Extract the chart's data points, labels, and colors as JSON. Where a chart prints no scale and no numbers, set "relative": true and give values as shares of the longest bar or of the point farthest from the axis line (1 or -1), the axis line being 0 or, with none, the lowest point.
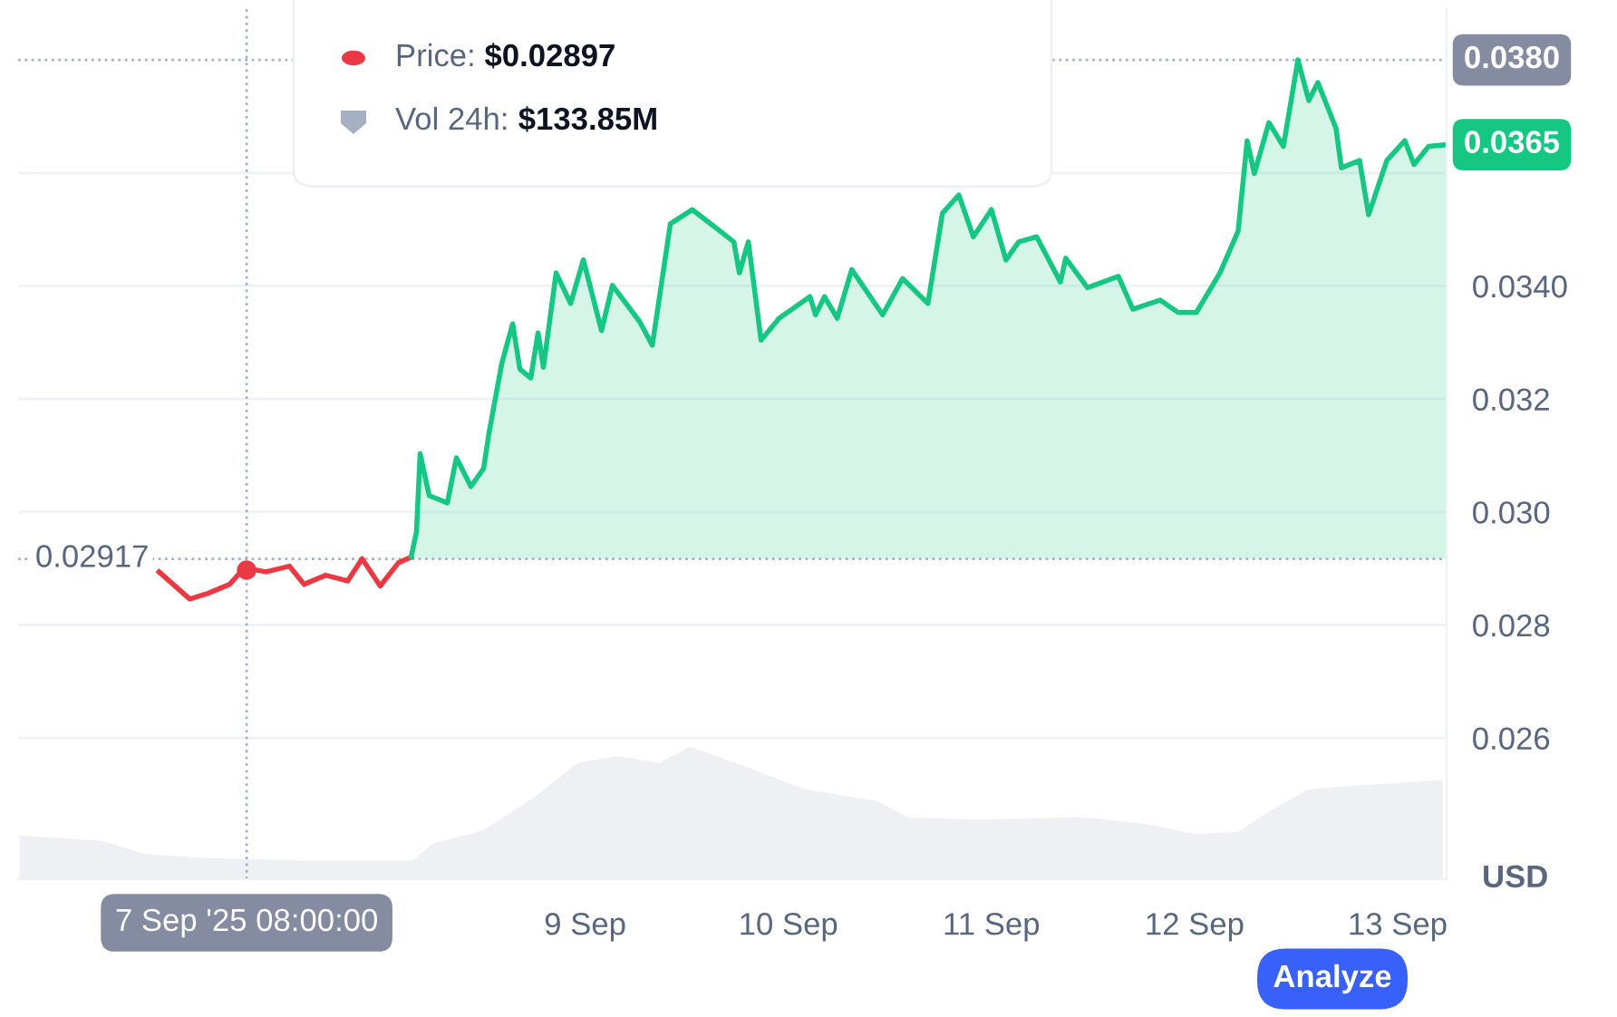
{
  "chart_data": [
    {
      "type": "area",
      "relative": true,
      "xlim": [
        "2025-09-06T05:00",
        "2025-09-13T05:47"
      ],
      "x": [
        "2025-09-06T05:09",
        "2025-09-06T15:00",
        "2025-09-06T19:56",
        "2025-09-07T03:13",
        "2025-09-07T15:26",
        "2025-09-08T03:39",
        "2025-09-08T06:00",
        "2025-09-08T12:00",
        "2025-09-08T18:13",
        "2025-09-08T23:09",
        "2025-09-09T03:51",
        "2025-09-09T08:47",
        "2025-09-09T12:26",
        "2025-09-09T18:39",
        "2025-09-10T01:56",
        "2025-09-10T10:30",
        "2025-09-10T14:09",
        "2025-09-10T22:30",
        "2025-09-11T10:43",
        "2025-09-11T18:00",
        "2025-09-12T00:13",
        "2025-09-12T05:09",
        "2025-09-12T08:47",
        "2025-09-12T13:30",
        "2025-09-12T17:21",
        "2025-09-13T05:21"
      ],
      "series": [
        {
          "color": "#eef0f3",
          "values": [
            0.33,
            0.29,
            0.19,
            0.16,
            0.14,
            0.14,
            0.27,
            0.37,
            0.63,
            0.88,
            0.93,
            0.88,
            1.0,
            0.86,
            0.68,
            0.59,
            0.47,
            0.45,
            0.47,
            0.42,
            0.34,
            0.36,
            0.51,
            0.68,
            0.7,
            0.75
          ]
        }
      ]
    },
    {
      "type": "area",
      "ylabel": "USD",
      "grid": "y",
      "legend": false,
      "xlim": [
        "2025-09-06T05:00",
        "2025-09-13T05:47"
      ],
      "ylim": [
        0.0235,
        0.0389
      ],
      "xticks": [
        {
          "value": "2025-09-09",
          "label": "9 Sep"
        },
        {
          "value": "2025-09-10",
          "label": "10 Sep"
        },
        {
          "value": "2025-09-11",
          "label": "11 Sep"
        },
        {
          "value": "2025-09-12",
          "label": "12 Sep"
        },
        {
          "value": "2025-09-13",
          "label": "13 Sep"
        }
      ],
      "yticks": [
        {
          "value": 0.026,
          "label": "0.026"
        },
        {
          "value": 0.028,
          "label": "0.028"
        },
        {
          "value": 0.03,
          "label": "0.030"
        },
        {
          "value": 0.032,
          "label": "0.032"
        },
        {
          "value": 0.034,
          "label": "0.0340"
        },
        {
          "value": 0.036,
          "label": null
        }
      ],
      "series": [
        {
          "type": "line",
          "color": "#ea3943",
          "x": [
            "2025-09-06T21:39",
            "2025-09-07T01:17",
            "2025-09-07T03:26",
            "2025-09-07T06:00",
            "2025-09-07T07:43",
            "2025-09-07T10:17",
            "2025-09-07T13:04",
            "2025-09-07T14:47",
            "2025-09-07T17:21",
            "2025-09-07T19:56",
            "2025-09-07T21:39",
            "2025-09-07T23:47",
            "2025-09-08T01:56",
            "2025-09-08T03:26"
          ],
          "values": [
            0.02894,
            0.02846,
            0.02856,
            0.02872,
            0.02901,
            0.02894,
            0.02904,
            0.02872,
            0.02888,
            0.02878,
            0.02917,
            0.02869,
            0.0291,
            0.0292
          ]
        },
        {
          "color": "#16c784",
          "x": [
            "2025-09-08T03:26",
            "2025-09-08T04:04",
            "2025-09-08T04:30",
            "2025-09-08T05:34",
            "2025-09-08T07:43",
            "2025-09-08T08:47",
            "2025-09-08T10:30",
            "2025-09-08T12:00",
            "2025-09-08T12:39",
            "2025-09-08T14:09",
            "2025-09-08T15:26",
            "2025-09-08T16:17",
            "2025-09-08T17:34",
            "2025-09-08T18:26",
            "2025-09-08T19:04",
            "2025-09-08T20:34",
            "2025-09-08T22:17",
            "2025-09-08T23:47",
            "2025-09-09T01:56",
            "2025-09-09T03:13",
            "2025-09-09T06:26",
            "2025-09-09T07:56",
            "2025-09-09T10:04",
            "2025-09-09T12:39",
            "2025-09-09T15:26",
            "2025-09-09T17:34",
            "2025-09-09T18:13",
            "2025-09-09T19:17",
            "2025-09-09T20:47",
            "2025-09-09T22:56",
            "2025-09-10T02:34",
            "2025-09-10T03:13",
            "2025-09-10T04:17",
            "2025-09-10T05:47",
            "2025-09-10T07:30",
            "2025-09-10T11:09",
            "2025-09-10T13:30",
            "2025-09-10T16:30",
            "2025-09-10T18:13",
            "2025-09-10T20:09",
            "2025-09-10T21:52",
            "2025-09-11T00:00",
            "2025-09-11T01:43",
            "2025-09-11T03:13",
            "2025-09-11T05:21",
            "2025-09-11T08:09",
            "2025-09-11T08:47",
            "2025-09-11T11:21",
            "2025-09-11T15:00",
            "2025-09-11T16:43",
            "2025-09-11T19:56",
            "2025-09-11T22:04",
            "2025-09-12T00:13",
            "2025-09-12T03:00",
            "2025-09-12T05:09",
            "2025-09-12T06:13",
            "2025-09-12T07:04",
            "2025-09-12T08:47",
            "2025-09-12T10:30",
            "2025-09-12T12:13",
            "2025-09-12T13:30",
            "2025-09-12T14:34",
            "2025-09-12T16:43",
            "2025-09-12T17:21",
            "2025-09-12T19:30",
            "2025-09-12T20:34",
            "2025-09-12T22:43",
            "2025-09-13T00:51",
            "2025-09-13T01:56",
            "2025-09-13T03:39",
            "2025-09-13T05:47"
          ],
          "values": [
            0.0292,
            0.02965,
            0.03103,
            0.03029,
            0.03016,
            0.03096,
            0.03045,
            0.03077,
            0.03141,
            0.03263,
            0.03333,
            0.03253,
            0.03237,
            0.03317,
            0.03256,
            0.03423,
            0.03369,
            0.03446,
            0.03321,
            0.03401,
            0.03337,
            0.03295,
            0.0351,
            0.03535,
            0.03503,
            0.03478,
            0.03423,
            0.03478,
            0.03304,
            0.03343,
            0.03381,
            0.03349,
            0.03381,
            0.03343,
            0.03429,
            0.03349,
            0.03413,
            0.03369,
            0.03529,
            0.03561,
            0.03487,
            0.03535,
            0.03446,
            0.03478,
            0.03487,
            0.03407,
            0.03449,
            0.03397,
            0.03417,
            0.03359,
            0.03375,
            0.03353,
            0.03353,
            0.03423,
            0.03497,
            0.03657,
            0.03599,
            0.03689,
            0.03647,
            0.038,
            0.03728,
            0.0376,
            0.03679,
            0.03609,
            0.03622,
            0.03526,
            0.03622,
            0.03657,
            0.03615,
            0.03647,
            0.0365
          ]
        },
        {
          "type": "scatter",
          "color": "#ea3943",
          "x": [
            "2025-09-07T08:00"
          ],
          "values": [
            0.02897
          ]
        }
      ],
      "ref_lines": [
        {
          "axis": "y",
          "value": 0.02917,
          "label": "0.02917",
          "color": "#a6b0c3",
          "line_style": "dotted"
        },
        {
          "axis": "y",
          "value": 0.038,
          "label": "0.0380",
          "color": "#a6b0c3",
          "line_style": "dotted"
        },
        {
          "axis": "x",
          "value": "2025-09-07T08:00",
          "label": "7 Sep '25 08:00:00",
          "color": "#a6b0c3",
          "line_style": "dotted"
        }
      ],
      "annotations": [
        "Price: $0.02897",
        "Vol 24h: $133.85M",
        "Analyze",
        {
          "text": "0.0365",
          "x": "2025-09-13T05:47",
          "y": 0.0365
        }
      ]
    }
  ]
}
